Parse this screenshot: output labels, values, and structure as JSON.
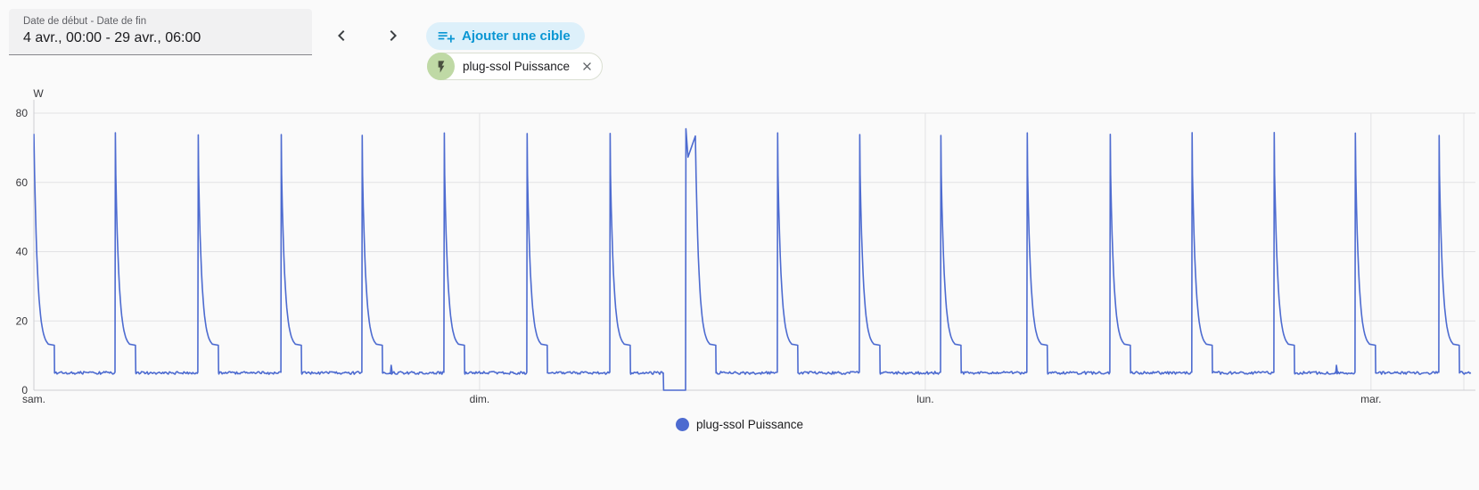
{
  "toolbar": {
    "date_field": {
      "label": "Date de début - Date de fin",
      "value": "4 avr., 00:00 - 29 avr., 06:00"
    },
    "prev_icon": "chevron-left",
    "next_icon": "chevron-right",
    "add_target_label": "Ajouter une cible",
    "add_target_icon": "playlist-plus",
    "chip": {
      "label": "plug-ssol Puissance",
      "icon": "flash",
      "close_icon": "close"
    }
  },
  "chart_data": {
    "type": "line",
    "title": "",
    "series_name": "plug-ssol Puissance",
    "unit": "W",
    "ylabel": "W",
    "ylim": [
      0,
      80
    ],
    "y_ticks": [
      0,
      20,
      40,
      60,
      80
    ],
    "x_ticks": [
      {
        "label": "sam.",
        "hour": 0
      },
      {
        "label": "dim.",
        "hour": 24
      },
      {
        "label": "lun.",
        "hour": 48
      },
      {
        "label": "mar.",
        "hour": 72
      }
    ],
    "v_grid_hours": [
      24,
      48,
      72,
      77.0
    ],
    "x_range_hours": [
      0,
      77.4
    ],
    "grid": true,
    "legend_position": "bottom",
    "line_color": "#4d6bd0",
    "baseline_w": 5,
    "peak_w": 74,
    "decay_floor_w": 12.3,
    "decay_tau_h": 0.19,
    "shelf_w": 13,
    "shelf_end_h": 1.1,
    "spike_times_h": [
      0,
      4.37,
      8.83,
      13.3,
      17.66,
      22.08,
      26.54,
      31.01,
      40.03,
      44.45,
      48.82,
      53.47,
      57.94,
      62.35,
      66.77,
      71.14,
      75.65
    ],
    "noise_blips_h": [
      19.2,
      70.1
    ],
    "anomaly": {
      "zero_start_h": 33.89,
      "zero_end_h": 35.09,
      "spike_time_h": 35.09,
      "spike_peak_w": 75.5,
      "notch_low_w": 67.3,
      "notch_recover_h": 35.62,
      "notch_recover_w": 73.4
    }
  },
  "legend": {
    "items": [
      {
        "label": "plug-ssol Puissance",
        "color": "#4d6bd0"
      }
    ]
  }
}
